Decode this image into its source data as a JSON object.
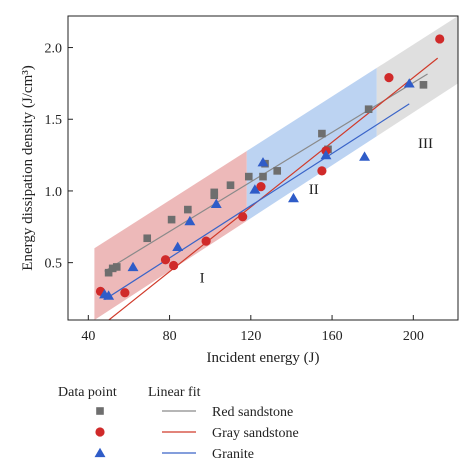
{
  "chart_data": {
    "type": "scatter",
    "xlabel": "Incident energy (J)",
    "ylabel": "Energy dissipation density (J/cm³)",
    "xlim": [
      30,
      222
    ],
    "ylim": [
      0.1,
      2.22
    ],
    "xticks": [
      40,
      80,
      120,
      160,
      200
    ],
    "yticks": [
      0.5,
      1.0,
      1.5,
      2.0
    ],
    "xtick_labels": [
      "40",
      "80",
      "120",
      "160",
      "200"
    ],
    "ytick_labels": [
      "0.5",
      "1.0",
      "1.5",
      "2.0"
    ],
    "grid": false,
    "regions": [
      {
        "label": "I",
        "color": "#e8a5a5",
        "x_from": 43,
        "x_to": 118,
        "label_pos": [
          96,
          0.36
        ]
      },
      {
        "label": "II",
        "color": "#a9c6ee",
        "x_from": 118,
        "x_to": 182,
        "label_pos": [
          151,
          0.98
        ]
      },
      {
        "label": "III",
        "color": "#d6d6d6",
        "x_from": 182,
        "x_to": 222,
        "label_pos": [
          206,
          1.3
        ]
      }
    ],
    "band": {
      "lower": [
        [
          43,
          0.1
        ],
        [
          222,
          1.75
        ]
      ],
      "upper": [
        [
          43,
          0.6
        ],
        [
          222,
          2.22
        ]
      ]
    },
    "series": [
      {
        "name": "Red sandstone",
        "marker": "square",
        "color": "#6e6e6e",
        "line_color": "#8a8a8a",
        "fit": {
          "slope": 0.00865,
          "intercept": 0.025,
          "x_range": [
            48,
            207
          ]
        },
        "points": [
          [
            50,
            0.43
          ],
          [
            52,
            0.46
          ],
          [
            54,
            0.47
          ],
          [
            69,
            0.67
          ],
          [
            81,
            0.8
          ],
          [
            89,
            0.87
          ],
          [
            102,
            0.97
          ],
          [
            102,
            0.99
          ],
          [
            110,
            1.04
          ],
          [
            119,
            1.1
          ],
          [
            126,
            1.1
          ],
          [
            127,
            1.19
          ],
          [
            133,
            1.14
          ],
          [
            155,
            1.4
          ],
          [
            158,
            1.29
          ],
          [
            178,
            1.57
          ],
          [
            205,
            1.74
          ]
        ]
      },
      {
        "name": "Gray sandstone",
        "marker": "circle",
        "color": "#d02a2a",
        "line_color": "#d03a2a",
        "fit": {
          "slope": 0.01128,
          "intercept": -0.465,
          "x_range": [
            46,
            212
          ]
        },
        "points": [
          [
            46,
            0.3
          ],
          [
            58,
            0.29
          ],
          [
            78,
            0.52
          ],
          [
            82,
            0.48
          ],
          [
            98,
            0.65
          ],
          [
            116,
            0.82
          ],
          [
            125,
            1.03
          ],
          [
            155,
            1.14
          ],
          [
            157,
            1.28
          ],
          [
            188,
            1.79
          ],
          [
            213,
            2.06
          ]
        ]
      },
      {
        "name": "Granite",
        "marker": "triangle",
        "color": "#2f5cc8",
        "line_color": "#3a64c8",
        "fit": {
          "slope": 0.0091,
          "intercept": -0.195,
          "x_range": [
            48,
            198
          ]
        },
        "points": [
          [
            48,
            0.28
          ],
          [
            50,
            0.27
          ],
          [
            62,
            0.47
          ],
          [
            84,
            0.61
          ],
          [
            90,
            0.79
          ],
          [
            103,
            0.91
          ],
          [
            122,
            1.01
          ],
          [
            126,
            1.2
          ],
          [
            141,
            0.95
          ],
          [
            157,
            1.25
          ],
          [
            176,
            1.24
          ],
          [
            198,
            1.75
          ]
        ]
      }
    ],
    "legend": {
      "placement": "bottom",
      "headers": [
        "Data point",
        "Linear fit"
      ],
      "entries": [
        "Red sandstone",
        "Gray sandstone",
        "Granite"
      ]
    }
  }
}
